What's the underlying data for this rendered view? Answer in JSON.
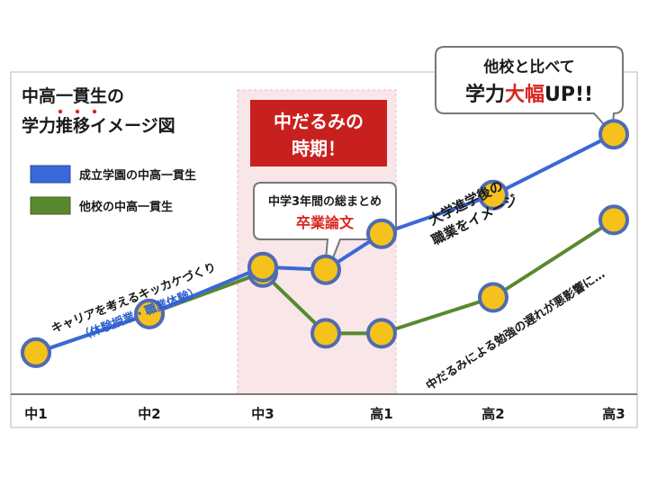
{
  "chart_data": {
    "type": "line",
    "title_line1": "中高一貫生の",
    "title_line2": "学力推移イメージ図",
    "title_emphasis_chars": [
      "一",
      "貫",
      "生"
    ],
    "categories": [
      "中1",
      "中2",
      "中3",
      "",
      "高1",
      "高2",
      "高3"
    ],
    "x_ticks": [
      "中1",
      "中2",
      "中3",
      "高1",
      "高2",
      "高3"
    ],
    "series": [
      {
        "name": "成立学園の中高一貫生",
        "color": "#3a68d8",
        "values": [
          1.5,
          2.9,
          4.6,
          4.5,
          5.8,
          7.2,
          9.4
        ]
      },
      {
        "name": "他校の中高一貫生",
        "color": "#58892e",
        "values": [
          1.5,
          2.9,
          4.4,
          2.2,
          2.2,
          3.5,
          6.3
        ]
      }
    ],
    "marker_fill": "#f5c21b",
    "marker_stroke": "#4f6bb3",
    "ylim": [
      0,
      11
    ],
    "highlight_band": {
      "from": "中3",
      "to": "高1",
      "color": "#f8e6e8"
    },
    "grid": false
  },
  "annotations": {
    "callout_red_line1": "中だるみの",
    "callout_red_line2": "時期！",
    "callout_thesis_line1": "中学3年間の総まとめ",
    "callout_thesis_line2": "卒業論文",
    "callout_top_line1": "他校と比べて",
    "callout_top_line2_a": "学力",
    "callout_top_line2_b": "大幅",
    "callout_top_line2_c": "UP!!",
    "career_line1": "キャリアを考えるキッカケづくり",
    "career_line2": "（体験授業・職業体験）",
    "university_line1": "大学進学後の",
    "university_line2": "職業をイメージ",
    "slump_text": "中だるみによる勉強の遅れが悪影響に…"
  },
  "colors": {
    "red_box": "#c8201e",
    "accent_red": "#d8261f",
    "career_blue": "#2d5fd0",
    "band_pink": "#f8e6e8",
    "text_dark": "#1a1a1a"
  }
}
